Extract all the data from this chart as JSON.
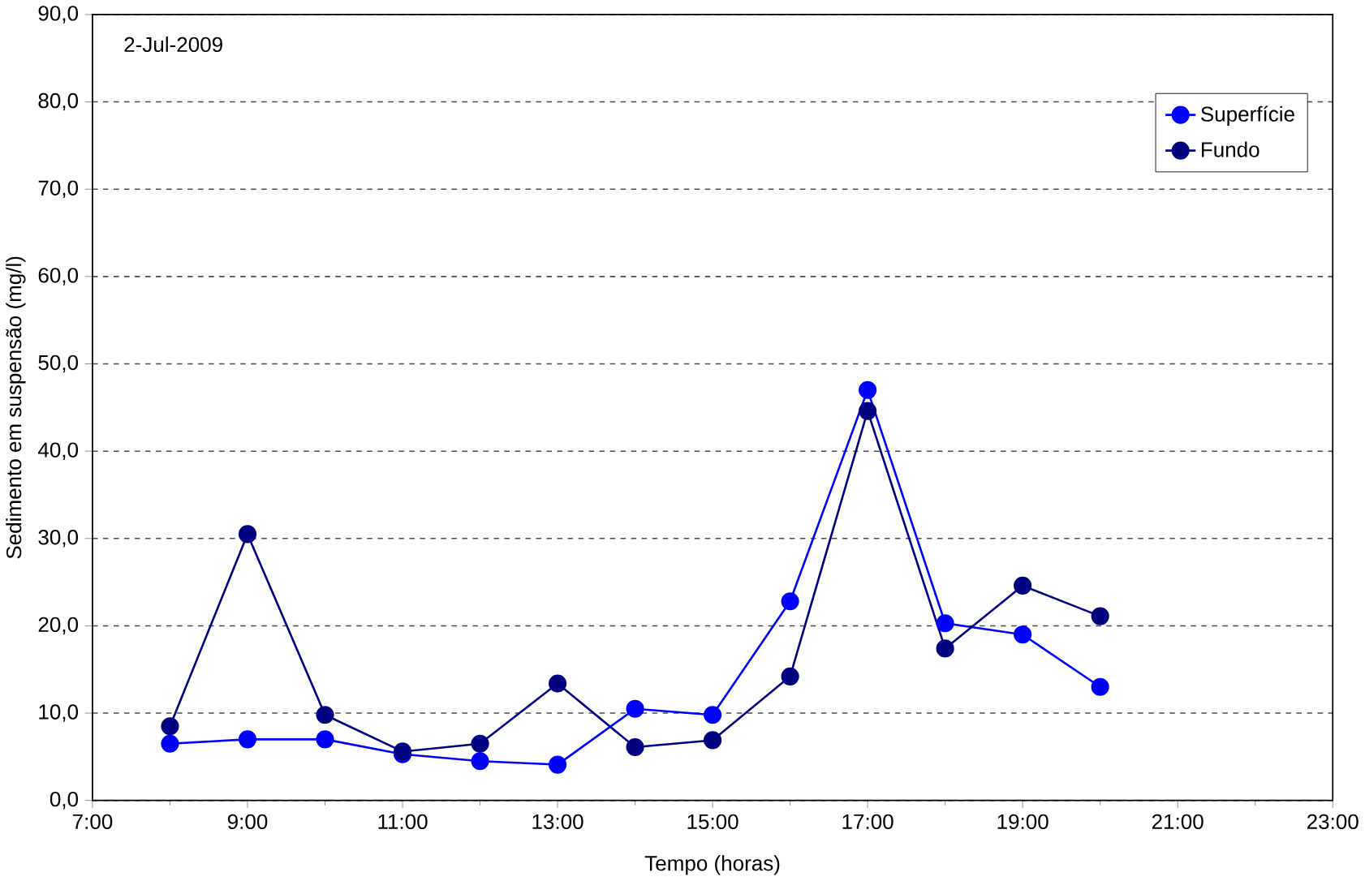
{
  "chart_data": {
    "type": "line",
    "xlabel": "Tempo (horas)",
    "ylabel": "Sedimento em suspensão (mg/l)",
    "annotations": [
      "2-Jul-2009"
    ],
    "x": [
      8,
      9,
      10,
      11,
      12,
      13,
      14,
      15,
      16,
      17,
      18,
      19,
      20
    ],
    "series": [
      {
        "name": "Superfície",
        "color": "#0000ff",
        "values": [
          6.5,
          7.0,
          7.0,
          5.3,
          4.5,
          4.1,
          10.5,
          9.8,
          22.8,
          47.0,
          20.3,
          19.0,
          13.0
        ]
      },
      {
        "name": "Fundo",
        "color": "#000080",
        "values": [
          8.5,
          30.5,
          9.8,
          5.6,
          6.5,
          13.4,
          6.1,
          6.9,
          14.2,
          44.6,
          17.4,
          24.6,
          21.1
        ]
      }
    ],
    "xlim": [
      7,
      23
    ],
    "xticks": [
      {
        "value": 7,
        "label": "7:00"
      },
      {
        "value": 9,
        "label": "9:00"
      },
      {
        "value": 11,
        "label": "11:00"
      },
      {
        "value": 13,
        "label": "13:00"
      },
      {
        "value": 15,
        "label": "15:00"
      },
      {
        "value": 17,
        "label": "17:00"
      },
      {
        "value": 19,
        "label": "19:00"
      },
      {
        "value": 21,
        "label": "21:00"
      },
      {
        "value": 23,
        "label": "23:00"
      }
    ],
    "ylim": [
      0,
      90
    ],
    "yticks": [
      {
        "value": 0,
        "label": "0,0"
      },
      {
        "value": 10,
        "label": "10,0"
      },
      {
        "value": 20,
        "label": "20,0"
      },
      {
        "value": 30,
        "label": "30,0"
      },
      {
        "value": 40,
        "label": "40,0"
      },
      {
        "value": 50,
        "label": "50,0"
      },
      {
        "value": 60,
        "label": "60,0"
      },
      {
        "value": 70,
        "label": "70,0"
      },
      {
        "value": 80,
        "label": "80,0"
      },
      {
        "value": 90,
        "label": "90,0"
      }
    ],
    "grid": "y",
    "legend": "top right",
    "marker": "circle",
    "line_style": "solid"
  }
}
